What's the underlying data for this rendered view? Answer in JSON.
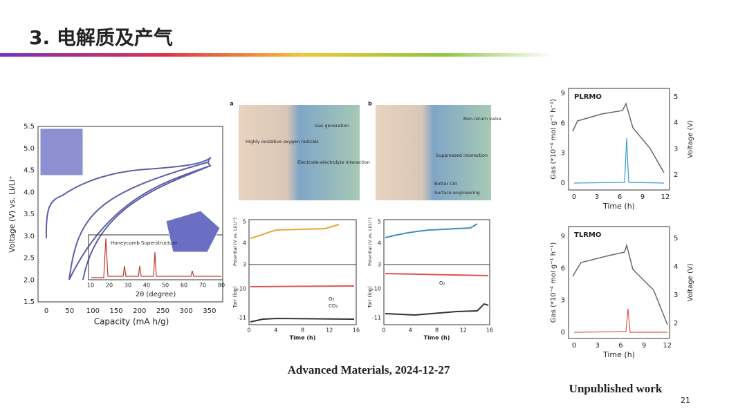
{
  "header": {
    "title": "3. 电解质及产气"
  },
  "figure_left": {
    "y_label": "Voltage (V) vs. Li/Li⁺",
    "x_label": "Capacity (mA h/g)",
    "yticks": [
      "5.5",
      "5.0",
      "4.5",
      "4.0",
      "3.5",
      "3.0",
      "2.5",
      "2.0",
      "1.5"
    ],
    "xticks": [
      "0",
      "50",
      "100",
      "150",
      "200",
      "250",
      "300",
      "350"
    ],
    "inset": {
      "annotation": "Honeycomb Superstructure",
      "x_label": "2θ (degree)",
      "xticks": [
        "10",
        "20",
        "30",
        "40",
        "50",
        "60",
        "70",
        "80"
      ]
    }
  },
  "figure_middle": {
    "panels": [
      {
        "label": "a",
        "notes": [
          "Highly oxidative oxygen radicals",
          "Gas generation",
          "Electrode-electrolyte interaction"
        ],
        "potential_label": "Potential (V vs. Li/Li⁺)",
        "potential_ticks": [
          "5",
          "4",
          "3"
        ],
        "torr_label": "Torr (log)",
        "torr_ticks": [
          "-10",
          "-11"
        ],
        "x_label": "Time (h)",
        "xticks": [
          "0",
          "4",
          "8",
          "12",
          "16"
        ],
        "legend": [
          "O₂",
          "CO₂"
        ]
      },
      {
        "label": "b",
        "notes": [
          "Non-return valve",
          "Suppressed interaction",
          "Better CEI",
          "Surface engineering"
        ],
        "potential_label": "Potential (V vs. Li/Li⁺)",
        "potential_ticks": [
          "5",
          "4",
          "3"
        ],
        "torr_label": "Torr (log)",
        "torr_ticks": [
          "-10",
          "-11"
        ],
        "x_label": "Time (h)",
        "xticks": [
          "0",
          "4",
          "8",
          "12",
          "16"
        ],
        "legend": [
          "O₂"
        ]
      }
    ]
  },
  "caption_middle": "Advanced Materials, 2024-12-27",
  "figure_right": {
    "panels": [
      {
        "label": "PLRMO",
        "y_label": "Gas (*10⁻⁴ mol g⁻¹ h⁻¹)",
        "y2_label": "Voltage (V)",
        "x_label": "Time (h)",
        "yticks": [
          "0",
          "3",
          "6",
          "9"
        ],
        "y2ticks": [
          "2",
          "3",
          "4",
          "5"
        ],
        "xticks": [
          "0",
          "3",
          "6",
          "9",
          "12"
        ]
      },
      {
        "label": "TLRMO",
        "y_label": "Gas (*10⁻⁴ mol g⁻¹ h⁻¹)",
        "y2_label": "Voltage (V)",
        "x_label": "Time (h)",
        "yticks": [
          "0",
          "3",
          "6",
          "9"
        ],
        "y2ticks": [
          "2",
          "3",
          "4",
          "5"
        ],
        "xticks": [
          "0",
          "3",
          "6",
          "9",
          "12"
        ]
      }
    ]
  },
  "caption_right": "Unpublished work",
  "page_number": "21"
}
